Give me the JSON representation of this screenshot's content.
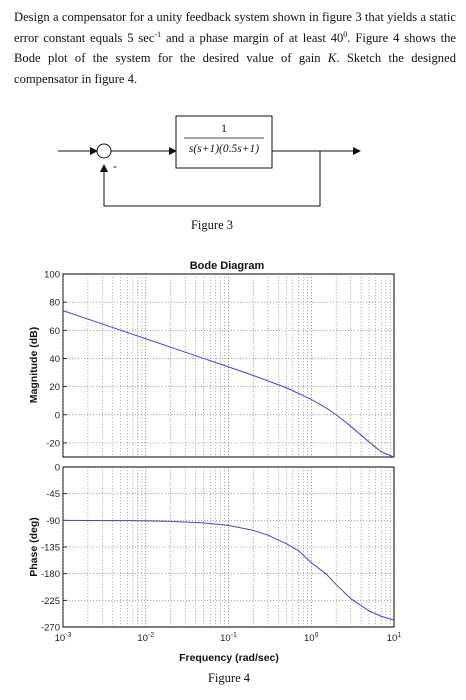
{
  "problem": {
    "part1": "Design a compensator for a unity feedback system shown in figure 3 that yields a static error constant equals 5 sec",
    "sup1": "-1",
    "part2": " and a phase margin of at least 40",
    "sup2": "0",
    "part3": ". Figure 4 shows the Bode plot of the system for the desired value of gain ",
    "gain_var": "K",
    "part4": ". Sketch the designed compensator in figure 4."
  },
  "block_diagram": {
    "numerator": "1",
    "denominator": "s(s+1)(0.5s+1)",
    "minus_sign": "-",
    "caption": "Figure 3"
  },
  "chart_data": {
    "type": "line",
    "title": "Bode Diagram",
    "xlabel": "Frequency (rad/sec)",
    "xscale": "log",
    "xlim": [
      0.001,
      10
    ],
    "x_tick_labels": [
      {
        "base": "10",
        "exp": "-3"
      },
      {
        "base": "10",
        "exp": "-2"
      },
      {
        "base": "10",
        "exp": "-1"
      },
      {
        "base": "10",
        "exp": "0"
      },
      {
        "base": "10",
        "exp": "1"
      }
    ],
    "grid": true,
    "line_color": "#4444cc",
    "magnitude": {
      "ylabel": "Magnitude (dB)",
      "ylim": [
        -30,
        100
      ],
      "yticks": [
        -20,
        0,
        20,
        40,
        60,
        80,
        100
      ],
      "x": [
        0.001,
        0.002,
        0.005,
        0.01,
        0.02,
        0.05,
        0.1,
        0.2,
        0.5,
        1,
        1.5,
        2,
        3,
        5,
        7,
        10
      ],
      "y": [
        74,
        68,
        60,
        54,
        48,
        40,
        34,
        27.9,
        19.2,
        10.9,
        5.0,
        0,
        -8.2,
        -19.3,
        -26.3,
        -33.2
      ]
    },
    "phase": {
      "ylabel": "Phase (deg)",
      "ylim": [
        -270,
        0
      ],
      "yticks": [
        0,
        -45,
        -90,
        -135,
        -180,
        -225,
        -270
      ],
      "x": [
        0.001,
        0.002,
        0.005,
        0.01,
        0.02,
        0.05,
        0.1,
        0.2,
        0.3,
        0.5,
        0.7,
        1,
        1.5,
        2,
        3,
        5,
        7,
        10
      ],
      "y": [
        -90.1,
        -90.2,
        -90.4,
        -90.9,
        -91.7,
        -94.3,
        -98.6,
        -107.0,
        -115.1,
        -129.4,
        -141.2,
        -161.6,
        -180.0,
        -198.4,
        -222.0,
        -243.0,
        -251.9,
        -258.4
      ]
    },
    "caption": "Figure 4"
  }
}
